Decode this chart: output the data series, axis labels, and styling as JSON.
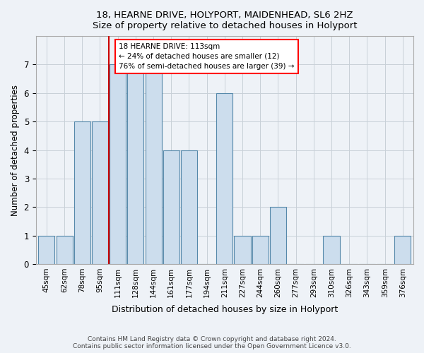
{
  "title1": "18, HEARNE DRIVE, HOLYPORT, MAIDENHEAD, SL6 2HZ",
  "title2": "Size of property relative to detached houses in Holyport",
  "xlabel": "Distribution of detached houses by size in Holyport",
  "ylabel": "Number of detached properties",
  "categories": [
    "45sqm",
    "62sqm",
    "78sqm",
    "95sqm",
    "111sqm",
    "128sqm",
    "144sqm",
    "161sqm",
    "177sqm",
    "194sqm",
    "211sqm",
    "227sqm",
    "244sqm",
    "260sqm",
    "277sqm",
    "293sqm",
    "310sqm",
    "326sqm",
    "343sqm",
    "359sqm",
    "376sqm"
  ],
  "values": [
    1,
    1,
    5,
    5,
    7,
    7,
    7,
    4,
    4,
    0,
    6,
    1,
    1,
    2,
    0,
    0,
    1,
    0,
    0,
    0,
    1
  ],
  "bar_color": "#ccdded",
  "bar_edge_color": "#5588aa",
  "red_line_after_index": 3,
  "annotation_text_line1": "18 HEARNE DRIVE: 113sqm",
  "annotation_text_line2": "← 24% of detached houses are smaller (12)",
  "annotation_text_line3": "76% of semi-detached houses are larger (39) →",
  "ylim": [
    0,
    8
  ],
  "yticks": [
    0,
    1,
    2,
    3,
    4,
    5,
    6,
    7
  ],
  "footer1": "Contains HM Land Registry data © Crown copyright and database right 2024.",
  "footer2": "Contains public sector information licensed under the Open Government Licence v3.0.",
  "bg_color": "#eef2f7",
  "plot_bg_color": "#eef2f7"
}
